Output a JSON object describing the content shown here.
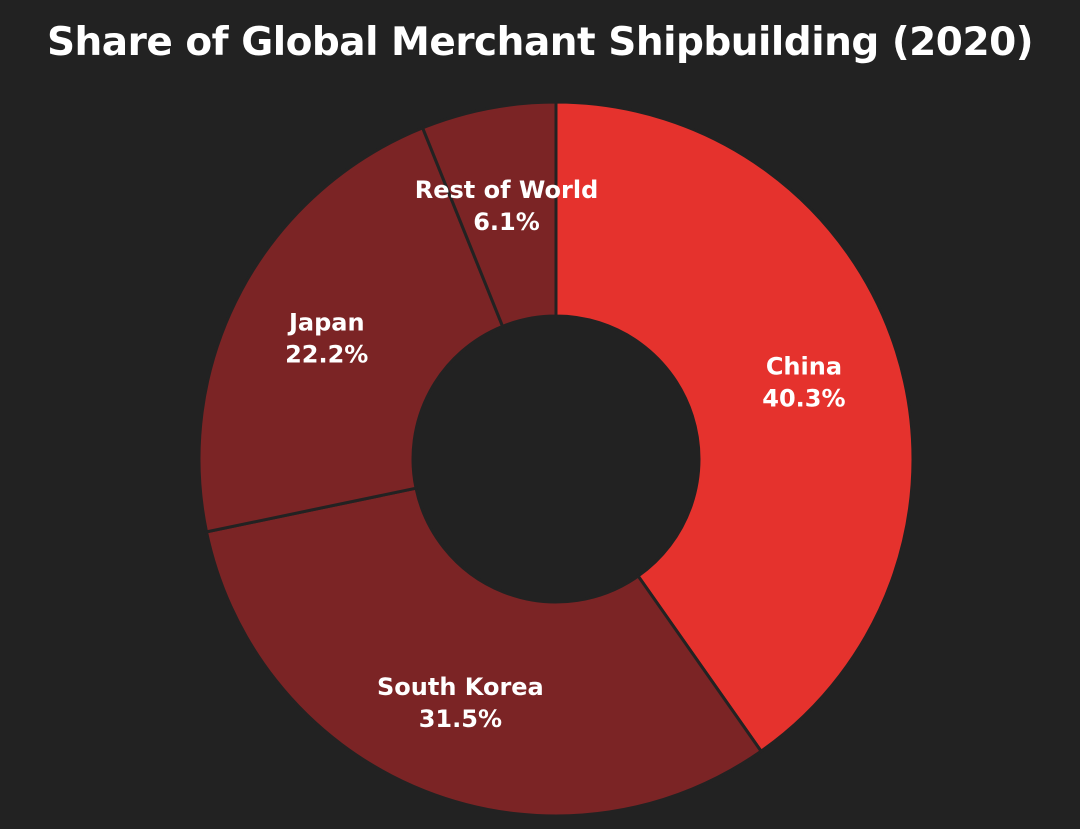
{
  "chart_data": {
    "type": "pie",
    "title": "Share of Global Merchant Shipbuilding (2020)",
    "donut": true,
    "categories": [
      "China",
      "South Korea",
      "Japan",
      "Rest of World"
    ],
    "values": [
      40.3,
      31.5,
      22.2,
      6.1
    ],
    "labels": [
      "40.3%",
      "31.5%",
      "22.2%",
      "6.1%"
    ],
    "colors": [
      "#e5322d",
      "#7b2425",
      "#7b2425",
      "#7b2425"
    ],
    "background": "#222222",
    "edge_color": "#222222",
    "start_angle": "12 o'clock",
    "direction": "clockwise"
  }
}
